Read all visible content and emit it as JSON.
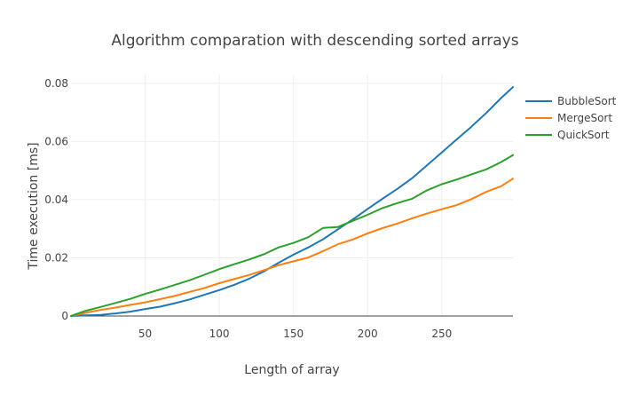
{
  "chart_data": {
    "type": "line",
    "title": "Algorithm comparation with descending sorted arrays",
    "xlabel": "Length of array",
    "ylabel": "Time execution [ms]",
    "xlim": [
      0,
      298
    ],
    "ylim": [
      0,
      0.083
    ],
    "xticks": [
      50,
      100,
      150,
      200,
      250
    ],
    "yticks": [
      0,
      0.02,
      0.04,
      0.06,
      0.08
    ],
    "ytick_labels": [
      "0",
      "0.02",
      "0.04",
      "0.06",
      "0.08"
    ],
    "grid": true,
    "legend_position": "top-right",
    "x": [
      0,
      10,
      20,
      30,
      40,
      50,
      60,
      70,
      80,
      90,
      100,
      110,
      120,
      130,
      140,
      150,
      160,
      170,
      180,
      190,
      200,
      210,
      220,
      230,
      240,
      250,
      260,
      270,
      280,
      290,
      298
    ],
    "series": [
      {
        "name": "BubbleSort",
        "color": "#1f77b4",
        "values": [
          0.0,
          0.0002,
          0.0004,
          0.0009,
          0.0015,
          0.0024,
          0.0032,
          0.0044,
          0.0057,
          0.0073,
          0.0089,
          0.0107,
          0.0128,
          0.0153,
          0.0183,
          0.0211,
          0.0236,
          0.0264,
          0.0298,
          0.0332,
          0.0368,
          0.0403,
          0.0437,
          0.0474,
          0.0518,
          0.0562,
          0.0607,
          0.0651,
          0.0698,
          0.0749,
          0.0787
        ]
      },
      {
        "name": "MergeSort",
        "color": "#ff7f0e",
        "values": [
          0.0,
          0.0011,
          0.0021,
          0.0029,
          0.0038,
          0.0047,
          0.0058,
          0.0069,
          0.0083,
          0.0096,
          0.0113,
          0.0127,
          0.0141,
          0.0157,
          0.0175,
          0.0188,
          0.0201,
          0.0223,
          0.0247,
          0.0263,
          0.0284,
          0.0302,
          0.0318,
          0.0336,
          0.0352,
          0.0367,
          0.0381,
          0.0402,
          0.0427,
          0.0446,
          0.0472
        ]
      },
      {
        "name": "QuickSort",
        "color": "#2ca02c",
        "values": [
          0.0,
          0.0018,
          0.0031,
          0.0045,
          0.0059,
          0.0076,
          0.0091,
          0.0107,
          0.0123,
          0.0142,
          0.0161,
          0.0178,
          0.0194,
          0.0212,
          0.0236,
          0.0251,
          0.0271,
          0.0303,
          0.0306,
          0.0327,
          0.0348,
          0.0371,
          0.0388,
          0.0403,
          0.0432,
          0.0453,
          0.0469,
          0.0487,
          0.0504,
          0.0529,
          0.0553
        ]
      }
    ]
  }
}
